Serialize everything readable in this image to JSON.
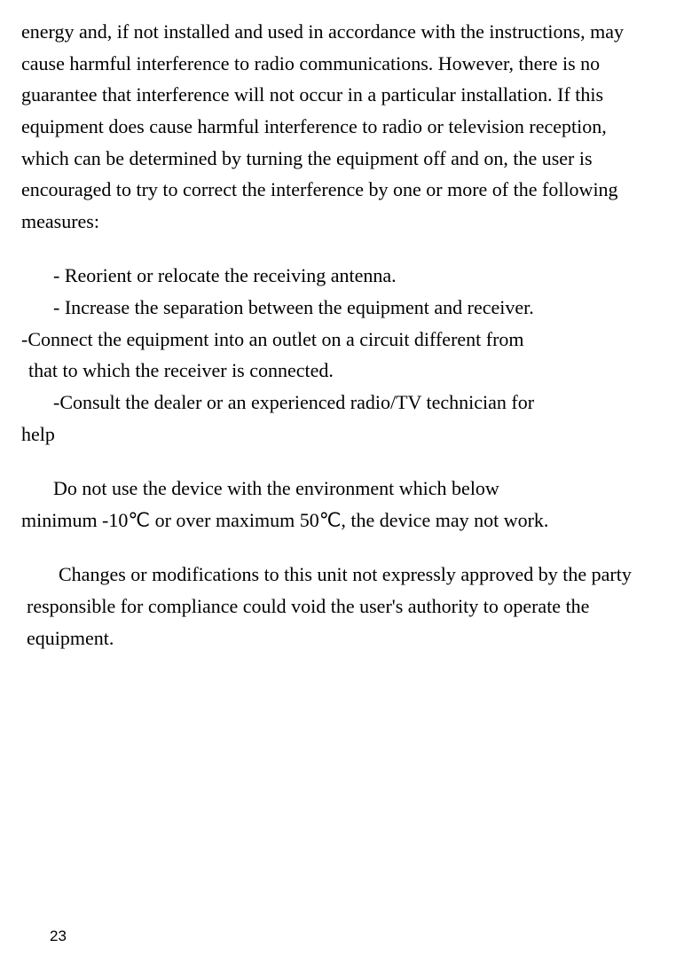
{
  "paragraphs": {
    "main": "energy and, if not installed and used in accordance with the instructions, may cause harmful interference to radio communications. However, there is no guarantee that interference will not occur in a particular installation. If this equipment does cause harmful interference to radio or television reception, which can be determined by turning the equipment off and on, the user is encouraged to try to correct the interference by one or more of the following measures:",
    "list1": "- Reorient or relocate the receiving antenna.",
    "list2": "- Increase the separation between the equipment and receiver.",
    "list3a": "-Connect the equipment into an outlet on a circuit different from",
    "list3b": "that to which the receiver is connected.",
    "list4a": "-Consult the dealer or an experienced radio/TV technician for",
    "list4b": "help",
    "env1": "Do not use the device with the environment which below",
    "env2": "minimum -10℃ or over maximum 50℃, the device may not work.",
    "changes": "Changes or modifications to this unit not expressly approved by the party responsible for compliance could void the user's authority to operate the equipment."
  },
  "pageNumber": "23"
}
